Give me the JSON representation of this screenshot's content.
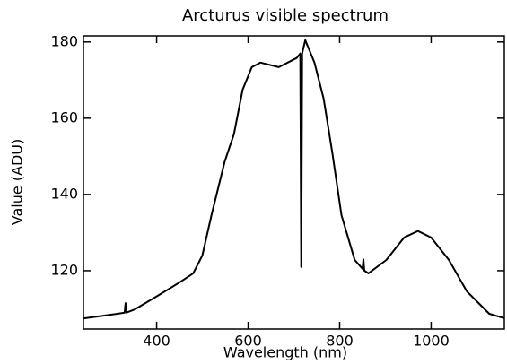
{
  "chart_data": {
    "type": "line",
    "title": "Arcturus visible spectrum",
    "x_label": "Wavelength (nm)",
    "y_label": "Value (ADU)",
    "x": [
      241,
      314,
      330,
      332,
      334,
      353,
      402,
      451,
      480,
      500,
      520,
      549,
      569,
      588,
      608,
      627,
      667,
      706,
      714,
      716,
      718,
      725,
      745,
      765,
      784,
      804,
      833,
      850,
      852,
      854,
      863,
      902,
      941,
      971,
      1000,
      1039,
      1078,
      1127,
      1161
    ],
    "series": [
      {
        "name": "spectrum",
        "color": "#000000",
        "values": [
          107.5,
          108.7,
          109,
          111.5,
          109,
          109.9,
          113.4,
          117,
          119.3,
          124,
          134.6,
          148.7,
          155.8,
          167.5,
          173.4,
          174.6,
          173.4,
          175.8,
          177,
          121,
          177,
          180.5,
          174.6,
          165.2,
          151,
          134.6,
          122.8,
          120.5,
          123,
          120,
          119.3,
          122.8,
          128.7,
          130.4,
          128.7,
          122.8,
          114.6,
          108.7,
          107.5
        ]
      }
    ],
    "xlim": [
      240,
      1160
    ],
    "ylim": [
      104.7,
      181.6
    ],
    "xticks": [
      400,
      600,
      800,
      1000
    ],
    "yticks": [
      120,
      140,
      160,
      180
    ],
    "grid": false
  }
}
